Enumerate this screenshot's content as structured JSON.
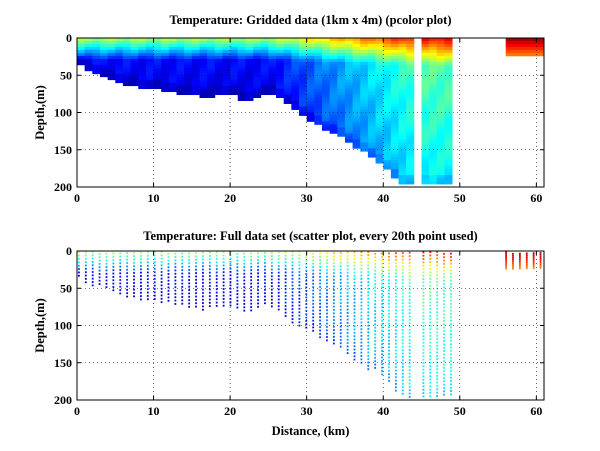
{
  "chart_data": [
    {
      "type": "heatmap",
      "title": "Temperature: Gridded data (1km x 4m) (pcolor plot)",
      "xlabel": "",
      "ylabel": "Depth,(m)",
      "xlim": [
        0,
        61
      ],
      "ylim": [
        200,
        0
      ],
      "y_reversed": true,
      "xticks": [
        0,
        10,
        20,
        30,
        40,
        50,
        60
      ],
      "yticks": [
        0,
        50,
        100,
        150,
        200
      ],
      "grid": "dotted",
      "colormap": "jet",
      "grid_cell_km": 1,
      "grid_cell_m": 4,
      "bottom_depth_m": [
        [
          0,
          35
        ],
        [
          1,
          42
        ],
        [
          2,
          48
        ],
        [
          3,
          52
        ],
        [
          4,
          56
        ],
        [
          5,
          60
        ],
        [
          6,
          62
        ],
        [
          7,
          64
        ],
        [
          8,
          66
        ],
        [
          9,
          66
        ],
        [
          10,
          68
        ],
        [
          11,
          70
        ],
        [
          12,
          72
        ],
        [
          13,
          74
        ],
        [
          14,
          76
        ],
        [
          15,
          76
        ],
        [
          16,
          80
        ],
        [
          17,
          78
        ],
        [
          18,
          76
        ],
        [
          19,
          74
        ],
        [
          20,
          76
        ],
        [
          21,
          84
        ],
        [
          22,
          84
        ],
        [
          23,
          78
        ],
        [
          24,
          74
        ],
        [
          25,
          76
        ],
        [
          26,
          80
        ],
        [
          27,
          88
        ],
        [
          28,
          96
        ],
        [
          29,
          104
        ],
        [
          30,
          110
        ],
        [
          31,
          116
        ],
        [
          32,
          122
        ],
        [
          33,
          128
        ],
        [
          34,
          132
        ],
        [
          35,
          138
        ],
        [
          36,
          146
        ],
        [
          37,
          152
        ],
        [
          38,
          160
        ],
        [
          39,
          168
        ],
        [
          40,
          176
        ],
        [
          41,
          188
        ],
        [
          42,
          196
        ],
        [
          43,
          196
        ],
        [
          44,
          196
        ],
        [
          45,
          196
        ],
        [
          46,
          196
        ],
        [
          47,
          196
        ],
        [
          48,
          196
        ],
        [
          49,
          196
        ]
      ],
      "data_gaps_km": [
        [
          44,
          45
        ],
        [
          49,
          56
        ]
      ],
      "data_segments_km": [
        [
          0,
          44
        ],
        [
          45,
          49
        ],
        [
          56,
          61
        ]
      ],
      "east_segment_depth_m": 24,
      "temperature_structure": "warm (red) surface layer 0-20 m, strongest near 40-44 km and 57-61 km; cold (blue) water below 50 m"
    },
    {
      "type": "scatter",
      "title": "Temperature: Full data set (scatter plot, every 20th point used)",
      "xlabel": "Distance, (km)",
      "ylabel": "Depth,(m)",
      "xlim": [
        0,
        61
      ],
      "ylim": [
        200,
        0
      ],
      "y_reversed": true,
      "xticks": [
        0,
        10,
        20,
        30,
        40,
        50,
        60
      ],
      "yticks": [
        0,
        50,
        100,
        150,
        200
      ],
      "grid": "dotted",
      "colormap": "jet"
    }
  ]
}
